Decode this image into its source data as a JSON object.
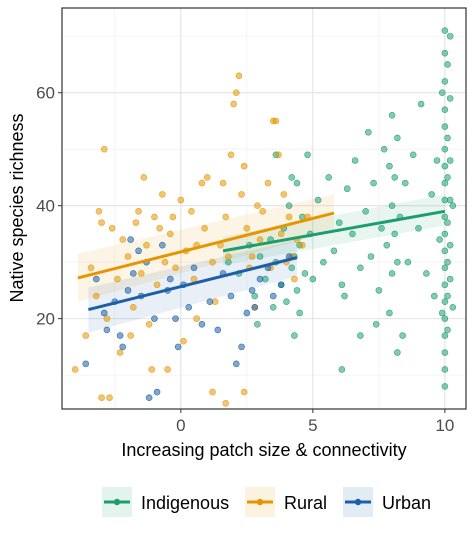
{
  "chart_data": {
    "type": "scatter",
    "title": "",
    "xlabel": "Increasing patch size & connectivity",
    "ylabel": "Native species richness",
    "xlim": [
      -4.5,
      10.8
    ],
    "ylim": [
      4,
      75
    ],
    "xticks": [
      0,
      5,
      10
    ],
    "yticks": [
      20,
      40,
      60
    ],
    "grid": true,
    "legend_position": "bottom",
    "series": [
      {
        "name": "Indigenous",
        "color": "#1b9e6f",
        "fit": {
          "x": [
            1.6,
            10.0
          ],
          "y": [
            32,
            39
          ],
          "ci_lo": [
            29.5,
            36.5
          ],
          "ci_hi": [
            34.5,
            42
          ]
        },
        "points": [
          [
            1.8,
            30
          ],
          [
            2.2,
            28
          ],
          [
            2.6,
            33
          ],
          [
            2.8,
            24
          ],
          [
            3.0,
            31
          ],
          [
            3.2,
            27
          ],
          [
            3.4,
            34
          ],
          [
            3.5,
            22
          ],
          [
            3.6,
            30
          ],
          [
            3.8,
            26
          ],
          [
            3.9,
            36
          ],
          [
            4.0,
            23
          ],
          [
            4.1,
            40
          ],
          [
            4.2,
            29
          ],
          [
            4.2,
            45
          ],
          [
            4.3,
            31
          ],
          [
            4.4,
            25
          ],
          [
            4.5,
            33
          ],
          [
            4.6,
            38
          ],
          [
            4.7,
            28
          ],
          [
            4.8,
            49
          ],
          [
            4.9,
            35
          ],
          [
            5.0,
            27
          ],
          [
            5.2,
            41
          ],
          [
            5.4,
            30
          ],
          [
            5.6,
            45
          ],
          [
            5.8,
            32
          ],
          [
            6.0,
            37
          ],
          [
            6.1,
            26
          ],
          [
            6.3,
            43
          ],
          [
            6.5,
            35
          ],
          [
            6.6,
            48
          ],
          [
            6.8,
            29
          ],
          [
            7.0,
            39
          ],
          [
            7.1,
            53
          ],
          [
            7.2,
            31
          ],
          [
            7.3,
            44
          ],
          [
            7.5,
            25
          ],
          [
            7.6,
            36
          ],
          [
            7.7,
            50
          ],
          [
            7.8,
            33
          ],
          [
            7.9,
            47
          ],
          [
            8.0,
            40
          ],
          [
            8.0,
            56
          ],
          [
            8.0,
            28
          ],
          [
            8.1,
            35
          ],
          [
            8.1,
            45
          ],
          [
            8.2,
            30
          ],
          [
            8.2,
            52
          ],
          [
            8.3,
            38
          ],
          [
            8.5,
            44
          ],
          [
            8.6,
            30
          ],
          [
            8.8,
            49
          ],
          [
            9.0,
            36
          ],
          [
            9.1,
            58
          ],
          [
            9.3,
            28
          ],
          [
            9.5,
            42
          ],
          [
            9.6,
            24
          ],
          [
            9.7,
            48
          ],
          [
            9.8,
            34
          ],
          [
            9.9,
            60
          ],
          [
            9.9,
            21
          ],
          [
            10.0,
            71
          ],
          [
            10.0,
            67
          ],
          [
            10.0,
            62
          ],
          [
            10.0,
            57
          ],
          [
            10.0,
            54
          ],
          [
            10.0,
            50
          ],
          [
            10.0,
            47
          ],
          [
            10.0,
            44
          ],
          [
            10.0,
            41
          ],
          [
            10.0,
            38
          ],
          [
            10.0,
            35
          ],
          [
            10.0,
            32
          ],
          [
            10.0,
            29
          ],
          [
            10.0,
            26
          ],
          [
            10.0,
            23
          ],
          [
            10.0,
            20
          ],
          [
            10.0,
            17
          ],
          [
            10.0,
            14
          ],
          [
            10.0,
            11
          ],
          [
            10.0,
            8
          ],
          [
            10.1,
            65
          ],
          [
            10.1,
            52
          ],
          [
            10.1,
            45
          ],
          [
            10.1,
            37
          ],
          [
            10.1,
            30
          ],
          [
            10.1,
            24
          ],
          [
            10.1,
            18
          ],
          [
            10.2,
            70
          ],
          [
            10.2,
            59
          ],
          [
            10.2,
            48
          ],
          [
            10.2,
            41
          ],
          [
            10.2,
            33
          ],
          [
            10.2,
            27
          ],
          [
            10.3,
            22
          ],
          [
            10.3,
            40
          ],
          [
            2.9,
            19
          ],
          [
            4.3,
            17
          ],
          [
            4.5,
            21
          ],
          [
            6.2,
            24
          ],
          [
            6.8,
            17
          ],
          [
            7.4,
            19
          ],
          [
            7.9,
            21
          ],
          [
            8.2,
            14
          ],
          [
            8.4,
            17
          ],
          [
            6.1,
            11
          ],
          [
            3.6,
            49
          ],
          [
            4.4,
            44
          ]
        ]
      },
      {
        "name": "Rural",
        "color": "#e69500",
        "fit": {
          "x": [
            -3.9,
            5.8
          ],
          "y": [
            27.2,
            38.7
          ],
          "ci_lo": [
            23,
            35.5
          ],
          "ci_hi": [
            31.5,
            42
          ]
        },
        "points": [
          [
            -4.0,
            11
          ],
          [
            -3.6,
            17
          ],
          [
            -3.4,
            29
          ],
          [
            -3.2,
            24
          ],
          [
            -3.1,
            39
          ],
          [
            -3.0,
            37
          ],
          [
            -3.0,
            6
          ],
          [
            -2.9,
            50
          ],
          [
            -2.8,
            20
          ],
          [
            -2.7,
            6
          ],
          [
            -2.6,
            36
          ],
          [
            -2.4,
            27
          ],
          [
            -2.3,
            14
          ],
          [
            -2.2,
            34
          ],
          [
            -2.0,
            31
          ],
          [
            -1.9,
            17
          ],
          [
            -1.8,
            22
          ],
          [
            -1.7,
            37
          ],
          [
            -1.6,
            39
          ],
          [
            -1.5,
            28
          ],
          [
            -1.4,
            45
          ],
          [
            -1.3,
            33
          ],
          [
            -1.2,
            19
          ],
          [
            -1.0,
            38
          ],
          [
            -0.9,
            26
          ],
          [
            -0.8,
            36
          ],
          [
            -0.7,
            42
          ],
          [
            -0.6,
            30
          ],
          [
            -0.5,
            11
          ],
          [
            -0.4,
            35
          ],
          [
            -0.3,
            38
          ],
          [
            -0.2,
            29
          ],
          [
            0.0,
            41
          ],
          [
            0.1,
            16
          ],
          [
            0.2,
            32
          ],
          [
            0.4,
            39
          ],
          [
            0.5,
            27
          ],
          [
            0.6,
            33
          ],
          [
            0.8,
            44
          ],
          [
            0.9,
            36
          ],
          [
            1.0,
            45
          ],
          [
            1.2,
            30
          ],
          [
            1.3,
            23
          ],
          [
            1.5,
            33
          ],
          [
            1.6,
            44
          ],
          [
            1.7,
            38
          ],
          [
            1.8,
            31
          ],
          [
            1.9,
            49
          ],
          [
            2.0,
            58
          ],
          [
            2.1,
            60
          ],
          [
            2.2,
            63
          ],
          [
            2.3,
            42
          ],
          [
            2.4,
            47
          ],
          [
            2.5,
            36
          ],
          [
            2.6,
            29
          ],
          [
            2.7,
            31
          ],
          [
            2.8,
            22
          ],
          [
            2.9,
            40
          ],
          [
            3.0,
            34
          ],
          [
            3.1,
            39
          ],
          [
            3.3,
            44
          ],
          [
            3.4,
            29
          ],
          [
            3.6,
            55
          ],
          [
            3.7,
            49
          ],
          [
            3.8,
            35
          ],
          [
            3.9,
            42
          ],
          [
            4.0,
            30
          ],
          [
            4.1,
            38
          ],
          [
            4.2,
            31
          ],
          [
            4.3,
            27
          ],
          [
            4.4,
            34
          ],
          [
            4.6,
            33
          ],
          [
            4.8,
            38
          ],
          [
            1.2,
            7
          ],
          [
            1.7,
            5
          ],
          [
            2.4,
            7
          ],
          [
            -1.1,
            11
          ],
          [
            0.6,
            20
          ],
          [
            3.5,
            55
          ]
        ]
      },
      {
        "name": "Urban",
        "color": "#1a5fa8",
        "fit": {
          "x": [
            -3.5,
            4.4
          ],
          "y": [
            21.6,
            30.8
          ],
          "ci_lo": [
            17.5,
            27.5
          ],
          "ci_hi": [
            25.5,
            34
          ]
        },
        "points": [
          [
            -3.6,
            12
          ],
          [
            -3.2,
            27
          ],
          [
            -2.9,
            21
          ],
          [
            -2.5,
            23
          ],
          [
            -2.2,
            15
          ],
          [
            -2.0,
            25
          ],
          [
            -1.8,
            28
          ],
          [
            -1.6,
            32
          ],
          [
            -1.5,
            24
          ],
          [
            -1.3,
            30
          ],
          [
            -1.2,
            6
          ],
          [
            -1.0,
            20
          ],
          [
            -0.9,
            7
          ],
          [
            -0.7,
            33
          ],
          [
            -0.5,
            25
          ],
          [
            -0.4,
            27
          ],
          [
            -0.2,
            20
          ],
          [
            -0.1,
            15
          ],
          [
            0.1,
            26
          ],
          [
            0.3,
            22
          ],
          [
            0.5,
            29
          ],
          [
            0.8,
            19
          ],
          [
            1.1,
            23
          ],
          [
            1.4,
            18
          ],
          [
            1.6,
            28
          ],
          [
            1.9,
            24
          ],
          [
            2.1,
            12
          ],
          [
            2.3,
            15
          ],
          [
            2.5,
            21
          ],
          [
            2.7,
            25
          ],
          [
            2.8,
            22
          ],
          [
            3.0,
            27
          ],
          [
            3.3,
            29
          ],
          [
            3.5,
            24
          ],
          [
            3.8,
            26
          ],
          [
            4.1,
            31
          ],
          [
            -2.8,
            18
          ],
          [
            -2.3,
            17
          ],
          [
            -1.9,
            34
          ]
        ]
      }
    ]
  }
}
